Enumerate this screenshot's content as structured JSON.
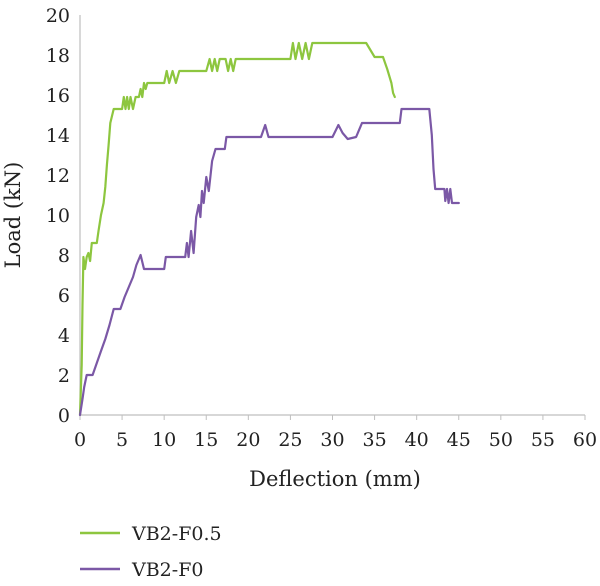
{
  "chart_data": {
    "type": "line",
    "xlabel": "Deflection (mm)",
    "ylabel": "Load (kN)",
    "xlim": [
      0,
      60
    ],
    "ylim": [
      0,
      20
    ],
    "xticks": [
      "0",
      "5",
      "10",
      "15",
      "20",
      "25",
      "30",
      "35",
      "40",
      "45",
      "50",
      "55",
      "60"
    ],
    "yticks": [
      "0",
      "2",
      "4",
      "6",
      "8",
      "10",
      "12",
      "14",
      "16",
      "18",
      "20"
    ],
    "grid": false,
    "legend_position": "bottom-left",
    "series": [
      {
        "name": "VB2-F0.5",
        "color": "#8dc63f",
        "points": [
          [
            0,
            0
          ],
          [
            0.2,
            2.5
          ],
          [
            0.3,
            5.5
          ],
          [
            0.4,
            7.9
          ],
          [
            0.6,
            7.3
          ],
          [
            0.8,
            7.9
          ],
          [
            1.0,
            8.1
          ],
          [
            1.2,
            7.7
          ],
          [
            1.4,
            8.6
          ],
          [
            2.0,
            8.6
          ],
          [
            2.2,
            9.2
          ],
          [
            2.5,
            10.0
          ],
          [
            2.8,
            10.6
          ],
          [
            3.0,
            11.4
          ],
          [
            3.2,
            12.5
          ],
          [
            3.4,
            13.5
          ],
          [
            3.6,
            14.6
          ],
          [
            4.0,
            15.3
          ],
          [
            5.0,
            15.3
          ],
          [
            5.2,
            15.9
          ],
          [
            5.4,
            15.3
          ],
          [
            5.6,
            15.9
          ],
          [
            5.8,
            15.3
          ],
          [
            6.0,
            15.9
          ],
          [
            6.3,
            15.3
          ],
          [
            6.6,
            15.9
          ],
          [
            7.0,
            15.9
          ],
          [
            7.2,
            16.3
          ],
          [
            7.4,
            15.9
          ],
          [
            7.6,
            16.6
          ],
          [
            7.8,
            16.3
          ],
          [
            8.0,
            16.6
          ],
          [
            10.0,
            16.6
          ],
          [
            10.3,
            17.2
          ],
          [
            10.6,
            16.6
          ],
          [
            11.0,
            17.2
          ],
          [
            11.4,
            16.6
          ],
          [
            11.8,
            17.2
          ],
          [
            15.0,
            17.2
          ],
          [
            15.4,
            17.8
          ],
          [
            15.7,
            17.2
          ],
          [
            16.0,
            17.8
          ],
          [
            16.3,
            17.2
          ],
          [
            16.6,
            17.8
          ],
          [
            17.3,
            17.8
          ],
          [
            17.6,
            17.2
          ],
          [
            17.9,
            17.8
          ],
          [
            18.2,
            17.2
          ],
          [
            18.5,
            17.8
          ],
          [
            25.0,
            17.8
          ],
          [
            25.3,
            18.6
          ],
          [
            25.6,
            17.8
          ],
          [
            26.0,
            18.6
          ],
          [
            26.4,
            17.8
          ],
          [
            26.8,
            18.6
          ],
          [
            27.2,
            17.8
          ],
          [
            27.6,
            18.6
          ],
          [
            34.0,
            18.6
          ],
          [
            35.0,
            17.9
          ],
          [
            36.0,
            17.9
          ],
          [
            36.5,
            17.3
          ],
          [
            37.0,
            16.6
          ],
          [
            37.2,
            16.1
          ],
          [
            37.4,
            15.9
          ]
        ]
      },
      {
        "name": "VB2-F0",
        "color": "#7b58a6",
        "points": [
          [
            0,
            0
          ],
          [
            0.3,
            0.8
          ],
          [
            0.5,
            1.4
          ],
          [
            0.8,
            2.0
          ],
          [
            1.5,
            2.0
          ],
          [
            2.0,
            2.6
          ],
          [
            2.5,
            3.2
          ],
          [
            3.0,
            3.8
          ],
          [
            3.5,
            4.5
          ],
          [
            4.0,
            5.3
          ],
          [
            4.8,
            5.3
          ],
          [
            5.3,
            5.9
          ],
          [
            5.8,
            6.4
          ],
          [
            6.3,
            6.9
          ],
          [
            6.7,
            7.5
          ],
          [
            7.2,
            8.0
          ],
          [
            7.6,
            7.3
          ],
          [
            10.0,
            7.3
          ],
          [
            10.2,
            7.9
          ],
          [
            12.5,
            7.9
          ],
          [
            12.7,
            8.6
          ],
          [
            12.9,
            7.9
          ],
          [
            13.2,
            9.2
          ],
          [
            13.5,
            8.1
          ],
          [
            13.8,
            9.9
          ],
          [
            14.1,
            10.5
          ],
          [
            14.3,
            9.9
          ],
          [
            14.5,
            11.2
          ],
          [
            14.7,
            10.6
          ],
          [
            15.0,
            11.9
          ],
          [
            15.3,
            11.2
          ],
          [
            15.7,
            12.7
          ],
          [
            16.1,
            13.3
          ],
          [
            17.2,
            13.3
          ],
          [
            17.4,
            13.9
          ],
          [
            21.5,
            13.9
          ],
          [
            22.0,
            14.5
          ],
          [
            22.4,
            13.9
          ],
          [
            30.0,
            13.9
          ],
          [
            30.7,
            14.5
          ],
          [
            31.2,
            14.1
          ],
          [
            31.8,
            13.8
          ],
          [
            32.8,
            13.9
          ],
          [
            33.5,
            14.6
          ],
          [
            38.0,
            14.6
          ],
          [
            38.2,
            15.3
          ],
          [
            41.5,
            15.3
          ],
          [
            41.8,
            14.0
          ],
          [
            41.9,
            13.1
          ],
          [
            42.0,
            12.3
          ],
          [
            42.2,
            11.3
          ],
          [
            43.3,
            11.3
          ],
          [
            43.4,
            10.7
          ],
          [
            43.6,
            11.3
          ],
          [
            43.8,
            10.6
          ],
          [
            44.0,
            11.3
          ],
          [
            44.2,
            10.6
          ],
          [
            45.0,
            10.6
          ]
        ]
      }
    ]
  }
}
